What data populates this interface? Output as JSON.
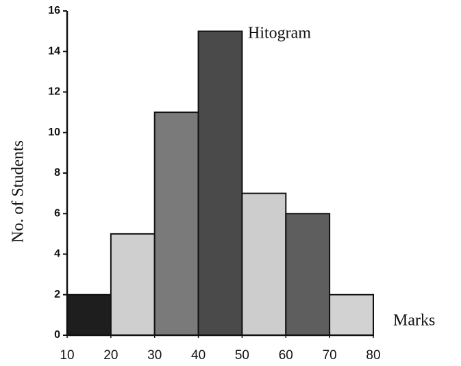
{
  "chart_data": {
    "type": "histogram",
    "title": "Hitogram",
    "x_label": "Marks",
    "y_label": "No. of Students",
    "bins": [
      10,
      20,
      30,
      40,
      50,
      60,
      70,
      80
    ],
    "values": [
      2,
      5,
      11,
      15,
      7,
      6,
      2
    ],
    "colors": [
      "#1e1e1e",
      "#cfcfcf",
      "#7a7a7a",
      "#4a4a4a",
      "#cdcdcd",
      "#5e5e5e",
      "#d2d2d2"
    ],
    "xlim": [
      10,
      80
    ],
    "xticks": [
      10,
      20,
      30,
      40,
      50,
      60,
      70,
      80
    ],
    "ylim": [
      0,
      16
    ],
    "yticks": [
      0,
      2,
      4,
      6,
      8,
      10,
      12,
      14,
      16
    ],
    "grid": false
  }
}
